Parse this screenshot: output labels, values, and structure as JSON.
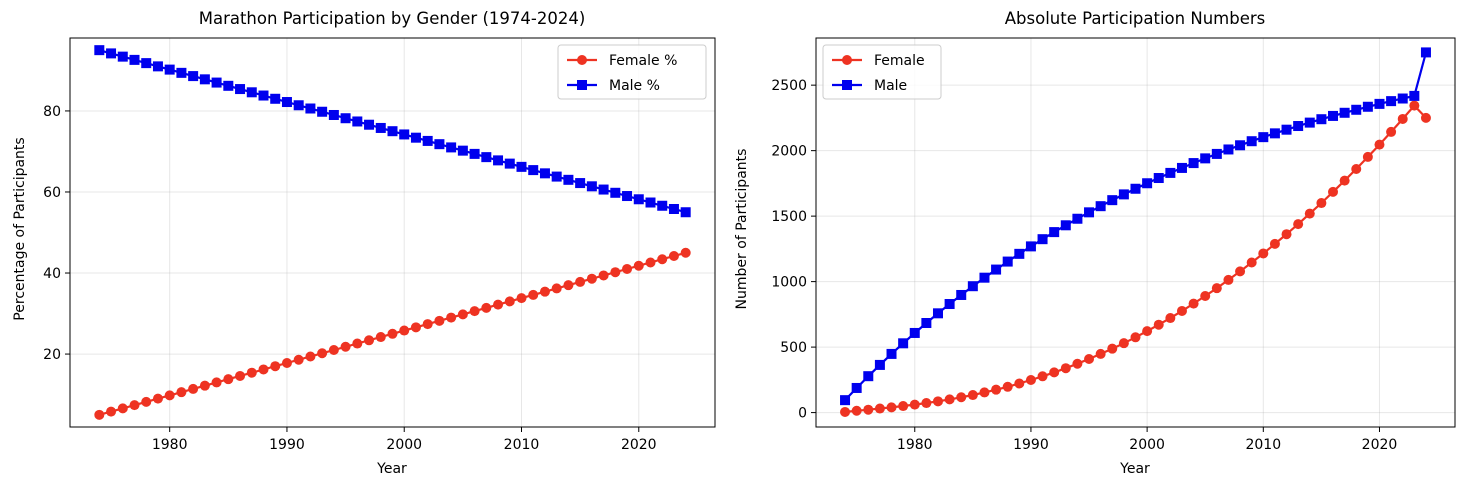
{
  "chart_data": [
    {
      "type": "line",
      "title": "Marathon Participation by Gender (1974-2024)",
      "xlabel": "Year",
      "ylabel": "Percentage of Participants",
      "xlim": [
        1971.5,
        2026.5
      ],
      "ylim": [
        2.0,
        98.0
      ],
      "xticks": [
        1980,
        1990,
        2000,
        2010,
        2020
      ],
      "yticks": [
        20,
        40,
        60,
        80
      ],
      "grid": true,
      "legend_position": "upper right",
      "x": [
        1974,
        1975,
        1976,
        1977,
        1978,
        1979,
        1980,
        1981,
        1982,
        1983,
        1984,
        1985,
        1986,
        1987,
        1988,
        1989,
        1990,
        1991,
        1992,
        1993,
        1994,
        1995,
        1996,
        1997,
        1998,
        1999,
        2000,
        2001,
        2002,
        2003,
        2004,
        2005,
        2006,
        2007,
        2008,
        2009,
        2010,
        2011,
        2012,
        2013,
        2014,
        2015,
        2016,
        2017,
        2018,
        2019,
        2020,
        2021,
        2022,
        2023,
        2024
      ],
      "series": [
        {
          "name": "Female %",
          "color": "#ee3322",
          "marker": "circle",
          "values": [
            5.0,
            5.8,
            6.6,
            7.4,
            8.2,
            9.0,
            9.8,
            10.6,
            11.4,
            12.2,
            13.0,
            13.8,
            14.6,
            15.4,
            16.2,
            17.0,
            17.8,
            18.6,
            19.4,
            20.2,
            21.0,
            21.8,
            22.6,
            23.4,
            24.2,
            25.0,
            25.8,
            26.6,
            27.4,
            28.2,
            29.0,
            29.8,
            30.6,
            31.4,
            32.2,
            33.0,
            33.8,
            34.6,
            35.4,
            36.2,
            37.0,
            37.8,
            38.6,
            39.4,
            40.2,
            41.0,
            41.8,
            42.6,
            43.4,
            44.2,
            45.0
          ]
        },
        {
          "name": "Male %",
          "color": "#0000ee",
          "marker": "square",
          "values": [
            95.0,
            94.2,
            93.4,
            92.6,
            91.8,
            91.0,
            90.2,
            89.4,
            88.6,
            87.8,
            87.0,
            86.2,
            85.4,
            84.6,
            83.8,
            83.0,
            82.2,
            81.4,
            80.6,
            79.8,
            79.0,
            78.2,
            77.4,
            76.6,
            75.8,
            75.0,
            74.2,
            73.4,
            72.6,
            71.8,
            71.0,
            70.2,
            69.4,
            68.6,
            67.8,
            67.0,
            66.2,
            65.4,
            64.6,
            63.8,
            63.0,
            62.2,
            61.4,
            60.6,
            59.8,
            59.0,
            58.2,
            57.4,
            56.6,
            55.8,
            55.0
          ]
        }
      ]
    },
    {
      "type": "line",
      "title": "Absolute Participation Numbers",
      "xlabel": "Year",
      "ylabel": "Number of Participants",
      "xlim": [
        1971.5,
        2026.5
      ],
      "ylim": [
        -110,
        2860
      ],
      "xticks": [
        1980,
        1990,
        2000,
        2010,
        2020
      ],
      "yticks": [
        0,
        500,
        1000,
        1500,
        2000,
        2500
      ],
      "grid": true,
      "legend_position": "upper left",
      "x": [
        1974,
        1975,
        1976,
        1977,
        1978,
        1979,
        1980,
        1981,
        1982,
        1983,
        1984,
        1985,
        1986,
        1987,
        1988,
        1989,
        1990,
        1991,
        1992,
        1993,
        1994,
        1995,
        1996,
        1997,
        1998,
        1999,
        2000,
        2001,
        2002,
        2003,
        2004,
        2005,
        2006,
        2007,
        2008,
        2009,
        2010,
        2011,
        2012,
        2013,
        2014,
        2015,
        2016,
        2017,
        2018,
        2019,
        2020,
        2021,
        2022,
        2023,
        2024
      ],
      "series": [
        {
          "name": "Female",
          "color": "#ee3322",
          "marker": "circle",
          "values": [
            5,
            14,
            22,
            31,
            40,
            50,
            61,
            73,
            86,
            101,
            117,
            134,
            154,
            175,
            197,
            222,
            249,
            277,
            307,
            339,
            373,
            409,
            448,
            488,
            530,
            575,
            622,
            671,
            722,
            776,
            832,
            890,
            950,
            1013,
            1078,
            1146,
            1215,
            1288,
            1362,
            1439,
            1519,
            1600,
            1685,
            1771,
            1860,
            1952,
            2046,
            2143,
            2242,
            2344,
            2250
          ]
        },
        {
          "name": "Male",
          "color": "#0000ee",
          "marker": "square",
          "values": [
            95,
            188,
            278,
            364,
            448,
            529,
            608,
            684,
            758,
            829,
            898,
            965,
            1030,
            1092,
            1153,
            1212,
            1269,
            1324,
            1378,
            1430,
            1480,
            1529,
            1576,
            1622,
            1666,
            1709,
            1751,
            1791,
            1830,
            1868,
            1905,
            1941,
            1975,
            2009,
            2041,
            2072,
            2103,
            2132,
            2160,
            2188,
            2214,
            2240,
            2265,
            2289,
            2312,
            2335,
            2357,
            2378,
            2398,
            2418,
            2750
          ]
        }
      ]
    }
  ]
}
